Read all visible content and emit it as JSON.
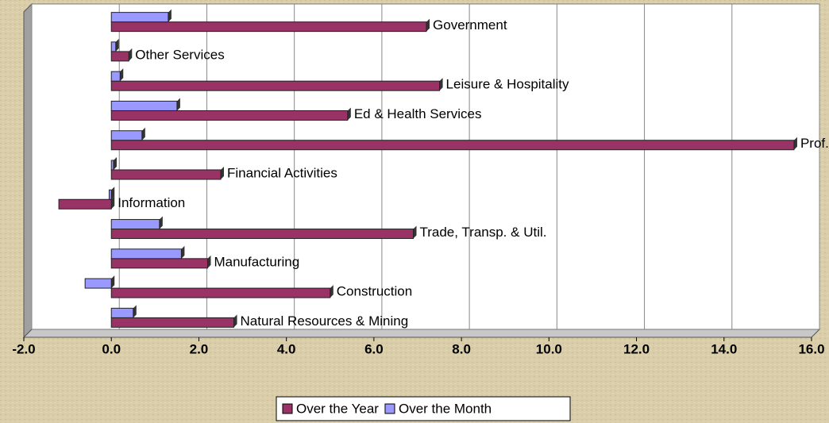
{
  "chart_data": {
    "type": "bar",
    "orientation": "horizontal",
    "categories": [
      "Natural Resources & Mining",
      "Construction",
      "Manufacturing",
      "Trade, Transp. & Util.",
      "Information",
      "Financial Activities",
      "Prof. & Bus. Services",
      "Ed & Health Services",
      "Leisure & Hospitality",
      "Other Services",
      "Government"
    ],
    "series": [
      {
        "name": "Over the Year",
        "color": "#993366",
        "values": [
          2.8,
          5.0,
          2.2,
          6.9,
          -1.2,
          2.5,
          15.6,
          5.4,
          7.5,
          0.4,
          7.2
        ]
      },
      {
        "name": "Over the Month",
        "color": "#9999ff",
        "values": [
          0.5,
          -0.6,
          1.6,
          1.1,
          -0.05,
          0.05,
          0.7,
          1.5,
          0.2,
          0.1,
          1.3
        ]
      }
    ],
    "xlim": [
      -2,
      16
    ],
    "xticks": [
      {
        "value": -2,
        "label": "-2.0"
      },
      {
        "value": 0,
        "label": "0.0"
      },
      {
        "value": 2,
        "label": "2.0"
      },
      {
        "value": 4,
        "label": "4.0"
      },
      {
        "value": 6,
        "label": "6.0"
      },
      {
        "value": 8,
        "label": "8.0"
      },
      {
        "value": 10,
        "label": "10.0"
      },
      {
        "value": 12,
        "label": "12.0"
      },
      {
        "value": 14,
        "label": "14.0"
      },
      {
        "value": 16,
        "label": "16.0"
      }
    ],
    "grid": true,
    "legend": "bottom"
  }
}
